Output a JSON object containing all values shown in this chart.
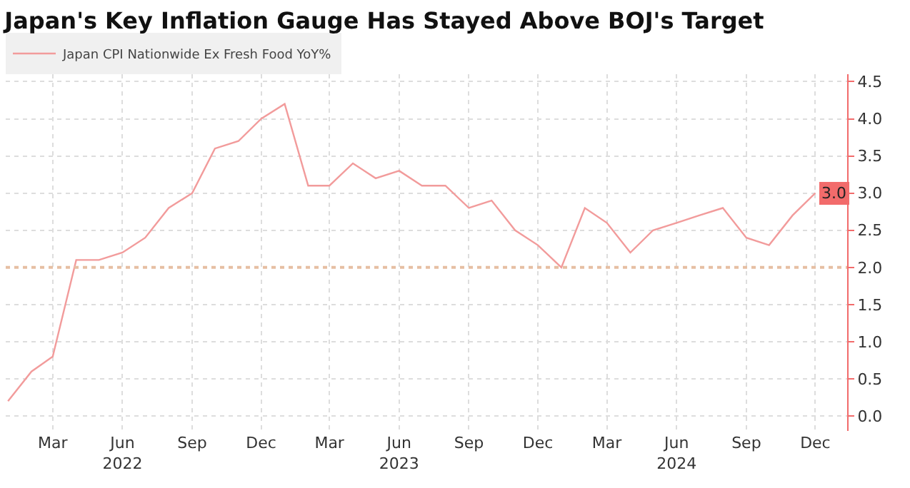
{
  "chart_data": {
    "type": "line",
    "title": "Japan's Key Inflation Gauge Has Stayed Above BOJ's Target",
    "x": [
      "2022-01",
      "2022-02",
      "2022-03",
      "2022-04",
      "2022-05",
      "2022-06",
      "2022-07",
      "2022-08",
      "2022-09",
      "2022-10",
      "2022-11",
      "2022-12",
      "2023-01",
      "2023-02",
      "2023-03",
      "2023-04",
      "2023-05",
      "2023-06",
      "2023-07",
      "2023-08",
      "2023-09",
      "2023-10",
      "2023-11",
      "2023-12",
      "2024-01",
      "2024-02",
      "2024-03",
      "2024-04",
      "2024-05",
      "2024-06",
      "2024-07",
      "2024-08",
      "2024-09",
      "2024-10",
      "2024-11",
      "2024-12"
    ],
    "series": [
      {
        "name": "Japan CPI Nationwide Ex Fresh Food YoY%",
        "color": "#f29b9b",
        "values": [
          0.2,
          0.6,
          0.8,
          2.1,
          2.1,
          2.2,
          2.4,
          2.8,
          3.0,
          3.6,
          3.7,
          4.0,
          4.2,
          3.1,
          3.1,
          3.4,
          3.2,
          3.3,
          3.1,
          3.1,
          2.8,
          2.9,
          2.5,
          2.3,
          2.0,
          2.8,
          2.6,
          2.2,
          2.5,
          2.6,
          2.7,
          2.8,
          2.4,
          2.3,
          2.7,
          3.0
        ],
        "value_labels": [
          null,
          null,
          null,
          null,
          null,
          null,
          null,
          null,
          null,
          null,
          null,
          null,
          null,
          null,
          null,
          null,
          null,
          null,
          null,
          null,
          null,
          null,
          null,
          null,
          null,
          null,
          null,
          null,
          null,
          null,
          null,
          null,
          null,
          null,
          null,
          "3.0"
        ]
      }
    ],
    "xlim": [
      "2021-12-29",
      "2025-01-12"
    ],
    "xticks": [
      {
        "value": "2022-03-01",
        "label": "Mar"
      },
      {
        "value": "2022-06-01",
        "label": "Jun\n2022"
      },
      {
        "value": "2022-09-01",
        "label": "Sep"
      },
      {
        "value": "2022-12-01",
        "label": "Dec"
      },
      {
        "value": "2023-03-01",
        "label": "Mar"
      },
      {
        "value": "2023-06-01",
        "label": "Jun\n2023"
      },
      {
        "value": "2023-09-01",
        "label": "Sep"
      },
      {
        "value": "2023-12-01",
        "label": "Dec"
      },
      {
        "value": "2024-03-01",
        "label": "Mar"
      },
      {
        "value": "2024-06-01",
        "label": "Jun\n2024"
      },
      {
        "value": "2024-09-01",
        "label": "Sep"
      },
      {
        "value": "2024-12-01",
        "label": "Dec"
      }
    ],
    "ylim": [
      -0.2,
      4.6
    ],
    "yticks": [
      {
        "value": 0,
        "label": "0.0"
      },
      {
        "value": 0.5,
        "label": "0.5"
      },
      {
        "value": 1,
        "label": "1.0"
      },
      {
        "value": 1.5,
        "label": "1.5"
      },
      {
        "value": 2,
        "label": "2.0"
      },
      {
        "value": 2.5,
        "label": "2.5"
      },
      {
        "value": 3,
        "label": "3.0"
      },
      {
        "value": 3.5,
        "label": "3.5"
      },
      {
        "value": 4,
        "label": "4.0"
      },
      {
        "value": 4.5,
        "label": "4.5"
      }
    ],
    "ref_lines": [
      {
        "axis": "y",
        "value": 2,
        "color": "#e6bfa3",
        "line_style": "dotted"
      }
    ],
    "grid": true,
    "legend": "top left",
    "marker": "none",
    "line_style": "solid"
  }
}
